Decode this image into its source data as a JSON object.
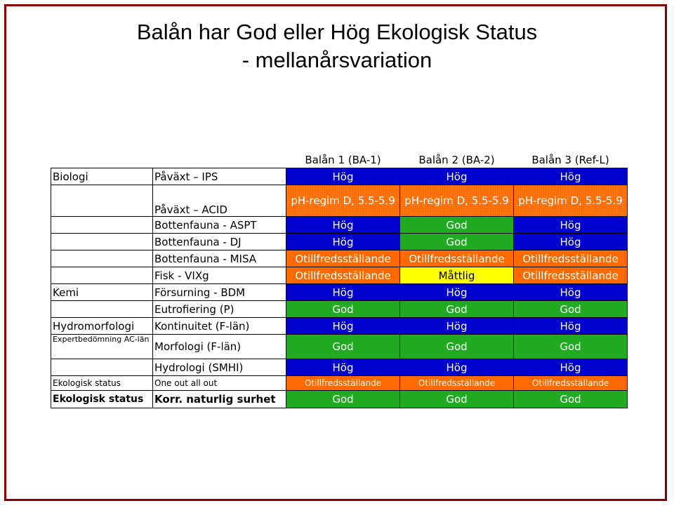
{
  "title": {
    "line1": "Balån har God eller Hög Ekologisk Status",
    "line2": "- mellanårsvariation"
  },
  "columns": [
    "Balån 1 (BA-1)",
    "Balån 2 (BA-2)",
    "Balån 3 (Ref-L)"
  ],
  "rows": [
    {
      "group": "Biologi",
      "param": "Påväxt – IPS",
      "values": [
        "Hög",
        "Hög",
        "Hög"
      ],
      "classes": [
        "g-high",
        "g-high",
        "g-high"
      ]
    },
    {
      "group": "",
      "param": "Påväxt – ACID",
      "values": [
        "pH-regim D, 5.5-5.9",
        "pH-regim D, 5.5-5.9",
        "pH-regim D, 5.5-5.9"
      ],
      "classes": [
        "g-ph",
        "g-ph",
        "g-ph"
      ]
    },
    {
      "group": "",
      "param": "Bottenfauna - ASPT",
      "values": [
        "Hög",
        "God",
        "Hög"
      ],
      "classes": [
        "g-high",
        "g-good",
        "g-high"
      ]
    },
    {
      "group": "",
      "param": "Bottenfauna - DJ",
      "values": [
        "Hög",
        "God",
        "Hög"
      ],
      "classes": [
        "g-high",
        "g-good",
        "g-high"
      ]
    },
    {
      "group": "",
      "param": "Bottenfauna - MISA",
      "values": [
        "Otillfredsställande",
        "Otillfredsställande",
        "Otillfredsställande"
      ],
      "classes": [
        "g-bad",
        "g-bad",
        "g-bad"
      ]
    },
    {
      "group": "",
      "param": "Fisk - VIXg",
      "values": [
        "Otillfredsställande",
        "Måttlig",
        "Otillfredsställande"
      ],
      "classes": [
        "g-bad",
        "g-mod",
        "g-bad"
      ]
    },
    {
      "group": "Kemi",
      "param": "Försurning - BDM",
      "values": [
        "Hög",
        "Hög",
        "Hög"
      ],
      "classes": [
        "g-high",
        "g-high",
        "g-high"
      ]
    },
    {
      "group": "",
      "param": "Eutrofiering (P)",
      "values": [
        "God",
        "God",
        "God"
      ],
      "classes": [
        "g-good",
        "g-good",
        "g-good"
      ]
    },
    {
      "group": "Hydromorfologi",
      "param": "Kontinuitet (F-län)",
      "values": [
        "Hög",
        "Hög",
        "Hög"
      ],
      "classes": [
        "g-high",
        "g-high",
        "g-high"
      ]
    },
    {
      "group": "Expertbedömning AC-län",
      "param": "Morfologi (F-län)",
      "values": [
        "God",
        "God",
        "God"
      ],
      "classes": [
        "g-good",
        "g-good",
        "g-good"
      ]
    },
    {
      "group": "",
      "param": "Hydrologi (SMHI)",
      "values": [
        "Hög",
        "Hög",
        "Hög"
      ],
      "classes": [
        "g-high",
        "g-high",
        "g-high"
      ]
    },
    {
      "group": "Ekologisk status",
      "param": "One out all out",
      "values": [
        "Otillfredsställande",
        "Otillfredsställande",
        "Otillfredsställande"
      ],
      "classes": [
        "g-bad",
        "g-bad",
        "g-bad"
      ]
    },
    {
      "group": "Ekologisk status",
      "param": "Korr. naturlig surhet",
      "values": [
        "God",
        "God",
        "God"
      ],
      "classes": [
        "g-good",
        "g-good",
        "g-good"
      ]
    }
  ],
  "colors": {
    "hog": "#0000cc",
    "god": "#22aa22",
    "otillfredsstallande": "#ff6a00",
    "mattlig": "#ffff00",
    "frame": "#8b0000"
  }
}
